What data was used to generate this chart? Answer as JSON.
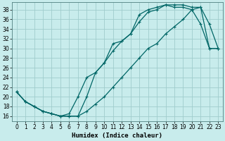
{
  "xlabel": "Humidex (Indice chaleur)",
  "bg_color": "#c8ecec",
  "grid_color": "#a0cccc",
  "line_color": "#006666",
  "xlim": [
    -0.5,
    23.5
  ],
  "ylim": [
    15,
    39.5
  ],
  "xtick_labels": [
    "0",
    "1",
    "2",
    "3",
    "4",
    "5",
    "6",
    "7",
    "8",
    "9",
    "10",
    "11",
    "12",
    "13",
    "14",
    "15",
    "16",
    "17",
    "18",
    "19",
    "20",
    "21",
    "22",
    "23"
  ],
  "xtick_vals": [
    0,
    1,
    2,
    3,
    4,
    5,
    6,
    7,
    8,
    9,
    10,
    11,
    12,
    13,
    14,
    15,
    16,
    17,
    18,
    19,
    20,
    21,
    22,
    23
  ],
  "ytick_vals": [
    16,
    18,
    20,
    22,
    24,
    26,
    28,
    30,
    32,
    34,
    36,
    38
  ],
  "ytick_labels": [
    "16",
    "18",
    "20",
    "22",
    "24",
    "26",
    "28",
    "30",
    "32",
    "34",
    "36",
    "38"
  ],
  "line1_x": [
    0,
    1,
    2,
    3,
    4,
    5,
    6,
    7,
    8,
    9,
    10,
    11,
    12,
    13,
    14,
    15,
    16,
    17,
    18,
    19,
    20,
    21,
    22,
    23
  ],
  "line1_y": [
    21,
    19,
    18,
    17,
    16.5,
    16,
    16,
    16,
    20,
    25,
    27,
    29.5,
    31.5,
    33,
    35.5,
    37.5,
    38,
    39,
    39,
    39,
    38.5,
    38.5,
    35,
    30
  ],
  "line2_x": [
    0,
    1,
    2,
    3,
    4,
    5,
    6,
    7,
    8,
    9,
    10,
    11,
    12,
    13,
    14,
    15,
    16,
    17,
    18,
    19,
    20,
    21,
    22,
    23
  ],
  "line2_y": [
    21,
    19,
    18,
    17,
    16.5,
    16,
    16.5,
    20,
    24,
    25,
    27,
    31,
    31.5,
    33,
    37,
    38,
    38.5,
    39,
    38.5,
    38.5,
    38,
    35,
    30,
    30
  ],
  "line3_x": [
    0,
    1,
    2,
    3,
    4,
    5,
    6,
    7,
    8,
    9,
    10,
    11,
    12,
    13,
    14,
    15,
    16,
    17,
    18,
    19,
    20,
    21,
    22,
    23
  ],
  "line3_y": [
    21,
    19,
    18,
    17,
    16.5,
    16,
    16,
    16,
    17,
    18.5,
    20,
    22,
    24,
    26,
    28,
    30,
    31,
    33,
    34.5,
    36,
    38,
    38.5,
    30,
    30
  ],
  "marker": "+",
  "markersize": 3.5,
  "linewidth": 0.9,
  "xlabel_fontsize": 6.5,
  "tick_fontsize": 5.5
}
